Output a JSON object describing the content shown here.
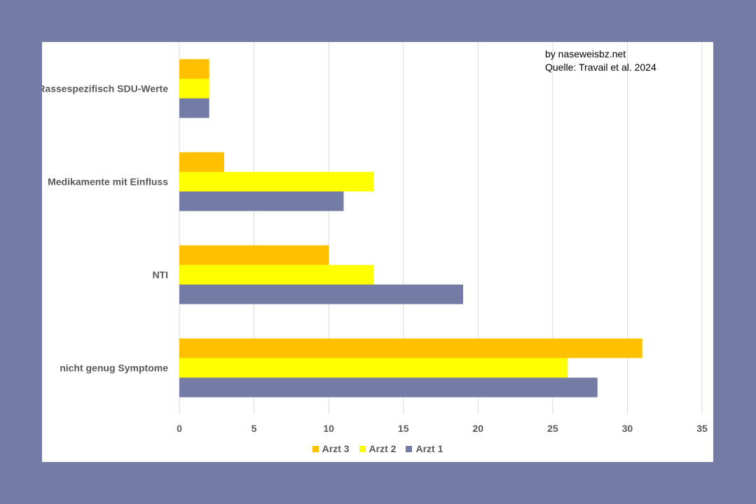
{
  "chart_data": {
    "type": "bar",
    "orientation": "horizontal",
    "categories": [
      "Rassespezifisch SDU-Werte",
      "Medikamente mit Einfluss",
      "NTI",
      "nicht genug Symptome"
    ],
    "series": [
      {
        "name": "Arzt 3",
        "color": "#ffc000",
        "values": [
          2,
          3,
          10,
          31
        ]
      },
      {
        "name": "Arzt 2",
        "color": "#ffff00",
        "values": [
          2,
          13,
          13,
          26
        ]
      },
      {
        "name": "Arzt 1",
        "color": "#747ca5",
        "values": [
          2,
          11,
          19,
          28
        ]
      }
    ],
    "xlim": [
      0,
      35
    ],
    "xticks": [
      "0",
      "5",
      "10",
      "15",
      "20",
      "25",
      "30",
      "35"
    ],
    "grid": true,
    "legend_position": "bottom"
  },
  "annotations": {
    "credit": "by naseweisbz.net",
    "source": "Quelle: Travail et al. 2024"
  },
  "colors": {
    "frame": "#747ca5",
    "background": "#ffffff",
    "gridline": "#d9d9d9"
  }
}
